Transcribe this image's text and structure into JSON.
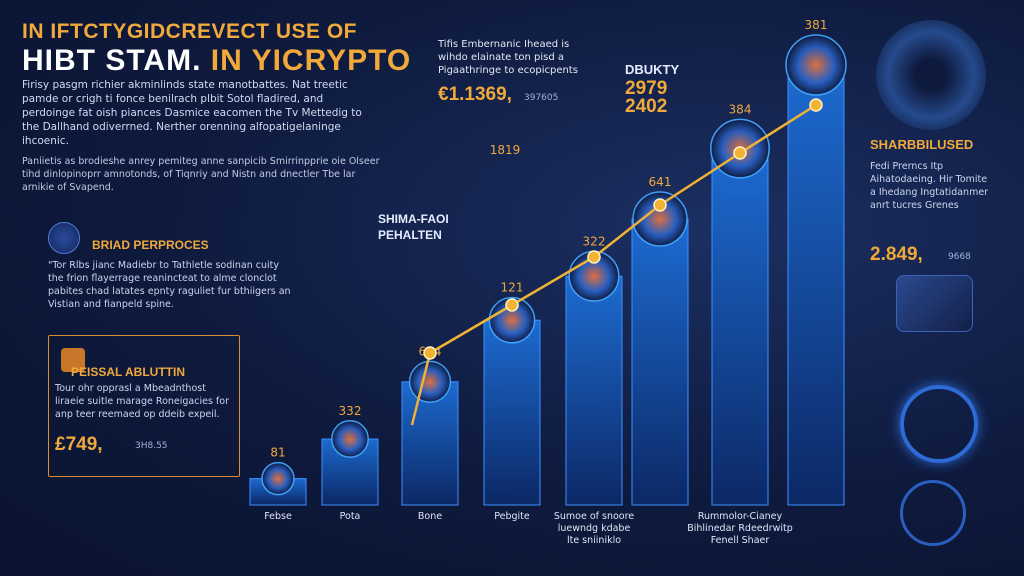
{
  "header": {
    "title_line1": "IN IFTCTYGIDCREVECT USE OF",
    "title_line2_a": "HIBT STAM.",
    "title_line2_b": " IN YICRYPTO"
  },
  "intro": {
    "text": "Firisy pasgm richier akminlinds state manotbattes. Nat treetic pamde or crigh ti fonce benilrach plbit Sotol fladired, and perdoinge fat oish piances Dasmice eacomen the Tv Mettedig to the Dallhand odiverrned. Nerther orenning alfopatigelaninge ihcoenic."
  },
  "note": {
    "text": "Paniietis as brodieshe anrey pemiteg anne sanpicib Smirrinpprie oie Olseer tihd dinlopinoprr amnotonds, of Tiqnriy and Nistn and dnectler Tbe lar arnikie of Svapend."
  },
  "section_brand": {
    "title": "BRIAD PERPROCES",
    "body": "\"Tor Rlbs jianc Madiebr to Tathletle sodinan cuity the frion flayerrage reanincteat to alme clonclot pabites chad latates epnty raguliet fur bthiigers an Vistian and fianpeld spine."
  },
  "section_box": {
    "title": "PEISSAL ABLUTTIN",
    "body": "Tour ohr opprasl a Mbeadnthost liraeie suitle marage Roneigacies for anp teer reemaed op ddeib expeil.",
    "value": "£749,",
    "sub": "3H8.55"
  },
  "center_note": {
    "text": "Tifis Embernanic Iheaed is wihdo elainate ton pisd a Pigaathringe to ecopicpents",
    "value": "€1.1369,",
    "sub": "397605"
  },
  "density": {
    "label": "DBUKTY",
    "value1": "2979",
    "value2": "2402"
  },
  "right_panel": {
    "title": "SHARBBILUSED",
    "body": "Fedi Prerncs Itp Aihatodaeing. Hir Tomite a Ihedang Ingtatidanmer anrt tucres Grenes",
    "value": "2.849,",
    "sub": "9668"
  },
  "mid_label": {
    "line1": "SHIMA-FAOI",
    "line2": "PEHALTEN"
  },
  "chart_data": {
    "type": "bar",
    "categories": [
      "Febse",
      "Pota",
      "Bone",
      "Pebgite",
      "Sumoe of snoore\nluewndg kdabe\nlte sniiniklo",
      "",
      "Rummolor-Cianey\nBihlinedar Rdeedrwitp\nFenell Shaer",
      ""
    ],
    "values": [
      81,
      332,
      654,
      121,
      322,
      641,
      384,
      381
    ],
    "value_labels": [
      "81",
      "332",
      "654",
      "121",
      "322",
      "641",
      "384",
      "381"
    ],
    "bar_heights_relative": [
      0.06,
      0.15,
      0.28,
      0.42,
      0.52,
      0.65,
      0.81,
      1.0
    ],
    "line_series": {
      "name": "",
      "values": [
        0.2,
        0.28,
        0.38,
        0.5,
        0.62,
        0.75,
        0.88,
        1.0
      ]
    },
    "extra_labels": [
      "1819"
    ],
    "colors": {
      "bar_top": "#1d6fd8",
      "bar_bottom": "#0c2a6b",
      "line": "#f2b233",
      "glow": "#42a6ff"
    }
  }
}
